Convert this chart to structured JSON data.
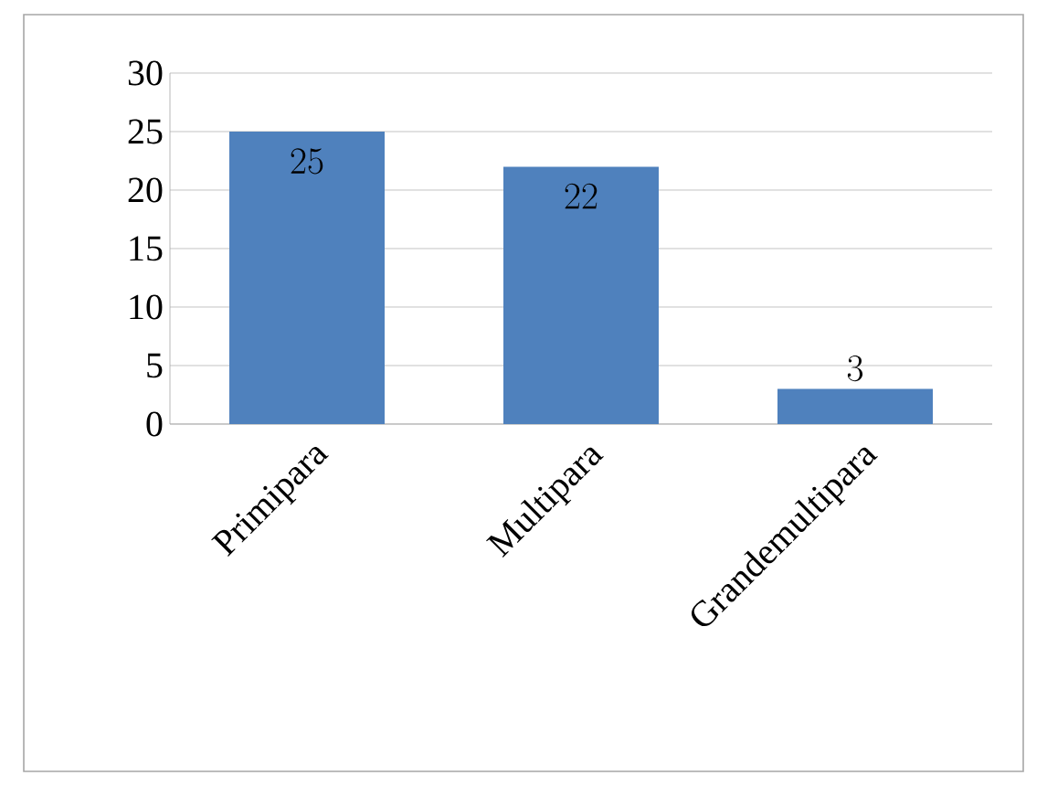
{
  "chart_data": {
    "type": "bar",
    "categories": [
      "Primipara",
      "Multipara",
      "Grandemultipara"
    ],
    "values": [
      25,
      22,
      3
    ],
    "color": "#4f81bd",
    "ylim": [
      0,
      30
    ],
    "yticks": [
      0,
      5,
      10,
      15,
      20,
      25,
      30
    ],
    "grid": "y",
    "data_labels": true
  }
}
